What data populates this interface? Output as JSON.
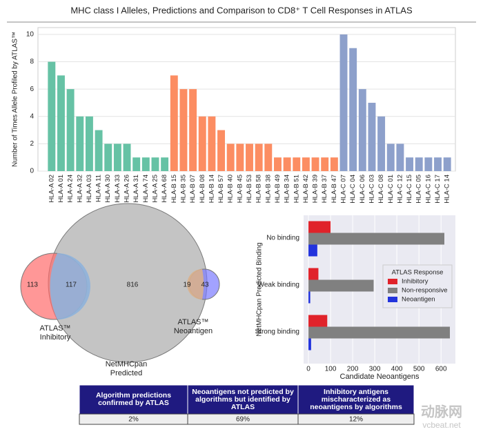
{
  "chart_data": [
    {
      "type": "bar",
      "title": "MHC class I Alleles, Predictions and Comparison to CD8⁺ T Cell Responses in ATLAS",
      "y_label": "Number of Times Allele Profiled by ATLAS™",
      "categories": [
        "HLA-A 02",
        "HLA-A 01",
        "HLA-A 24",
        "HLA-A 32",
        "HLA-A 03",
        "HLA-A 11",
        "HLA-A 30",
        "HLA-A 33",
        "HLA-A 26",
        "HLA-A 31",
        "HLA-A 74",
        "HLA-A 25",
        "HLA-A 68",
        "HLA-B 15",
        "HLA-B 35",
        "HLA-B 07",
        "HLA-B 08",
        "HLA-B 14",
        "HLA-B 57",
        "HLA-B 40",
        "HLA-B 45",
        "HLA-B 53",
        "HLA-B 58",
        "HLA-B 38",
        "HLA-B 49",
        "HLA-B 34",
        "HLA-B 51",
        "HLA-B 42",
        "HLA-B 39",
        "HLA-B 37",
        "HLA-B 47",
        "HLA-C 07",
        "HLA-C 04",
        "HLA-C 06",
        "HLA-C 03",
        "HLA-C 08",
        "HLA-C 01",
        "HLA-C 12",
        "HLA-C 15",
        "HLA-C 05",
        "HLA-C 16",
        "HLA-C 17",
        "HLA-C 14"
      ],
      "values": [
        8,
        7,
        6,
        4,
        4,
        3,
        2,
        2,
        2,
        1,
        1,
        1,
        1,
        7,
        6,
        6,
        4,
        4,
        3,
        2,
        2,
        2,
        2,
        2,
        1,
        1,
        1,
        1,
        1,
        1,
        1,
        10,
        9,
        6,
        5,
        4,
        2,
        2,
        1,
        1,
        1,
        1,
        1
      ],
      "colors": [
        "#66c2a5",
        "#66c2a5",
        "#66c2a5",
        "#66c2a5",
        "#66c2a5",
        "#66c2a5",
        "#66c2a5",
        "#66c2a5",
        "#66c2a5",
        "#66c2a5",
        "#66c2a5",
        "#66c2a5",
        "#66c2a5",
        "#fc8d62",
        "#fc8d62",
        "#fc8d62",
        "#fc8d62",
        "#fc8d62",
        "#fc8d62",
        "#fc8d62",
        "#fc8d62",
        "#fc8d62",
        "#fc8d62",
        "#fc8d62",
        "#fc8d62",
        "#fc8d62",
        "#fc8d62",
        "#fc8d62",
        "#fc8d62",
        "#fc8d62",
        "#fc8d62",
        "#8da0cb",
        "#8da0cb",
        "#8da0cb",
        "#8da0cb",
        "#8da0cb",
        "#8da0cb",
        "#8da0cb",
        "#8da0cb",
        "#8da0cb",
        "#8da0cb",
        "#8da0cb",
        "#8da0cb"
      ],
      "ylim": [
        0,
        10.5
      ],
      "yticks": [
        0,
        2,
        4,
        6,
        8,
        10
      ],
      "grid": true
    },
    {
      "type": "venn",
      "sets": [
        {
          "label": [
            "ATLAS™",
            "Inhibitory"
          ],
          "color": "#ff6b6b"
        },
        {
          "label": [
            "NetMHCpan",
            "Predicted"
          ],
          "color": "#b0b0b0"
        },
        {
          "label": [
            "ATLAS™",
            "Neoantigen"
          ],
          "color": "#7b7bff"
        }
      ],
      "values": [
        113,
        117,
        816,
        19,
        43
      ]
    },
    {
      "type": "hbar",
      "y_label": "NetMHCpan Predicted Binding",
      "x_label": "Candidate Neoantigens",
      "categories": [
        "No binding",
        "Weak binding",
        "Strong binding"
      ],
      "series": [
        {
          "name": "Inhibitory",
          "color": "#e0222a",
          "values": [
            100,
            45,
            85
          ]
        },
        {
          "name": "Non-responsive",
          "color": "#808080",
          "values": [
            615,
            295,
            640
          ]
        },
        {
          "name": "Neoantigen",
          "color": "#2233dd",
          "values": [
            40,
            8,
            12
          ]
        }
      ],
      "legend_title": "ATLAS Response",
      "legend": "right",
      "xlim": [
        -22,
        665
      ],
      "xticks": [
        0,
        100,
        200,
        300,
        400,
        500,
        600
      ],
      "grid": true
    }
  ],
  "table": {
    "columns": [
      "Algorithm predictions confirmed by ATLAS",
      "Neoantigens not predicted by algorithms but identified by ATLAS",
      "Inhibitory antigens mischaracterized as neoantigens by algorithms"
    ],
    "rows": [
      [
        "2%",
        "69%",
        "12%"
      ]
    ]
  },
  "watermark": [
    "动脉网",
    "vcbeat.net"
  ]
}
